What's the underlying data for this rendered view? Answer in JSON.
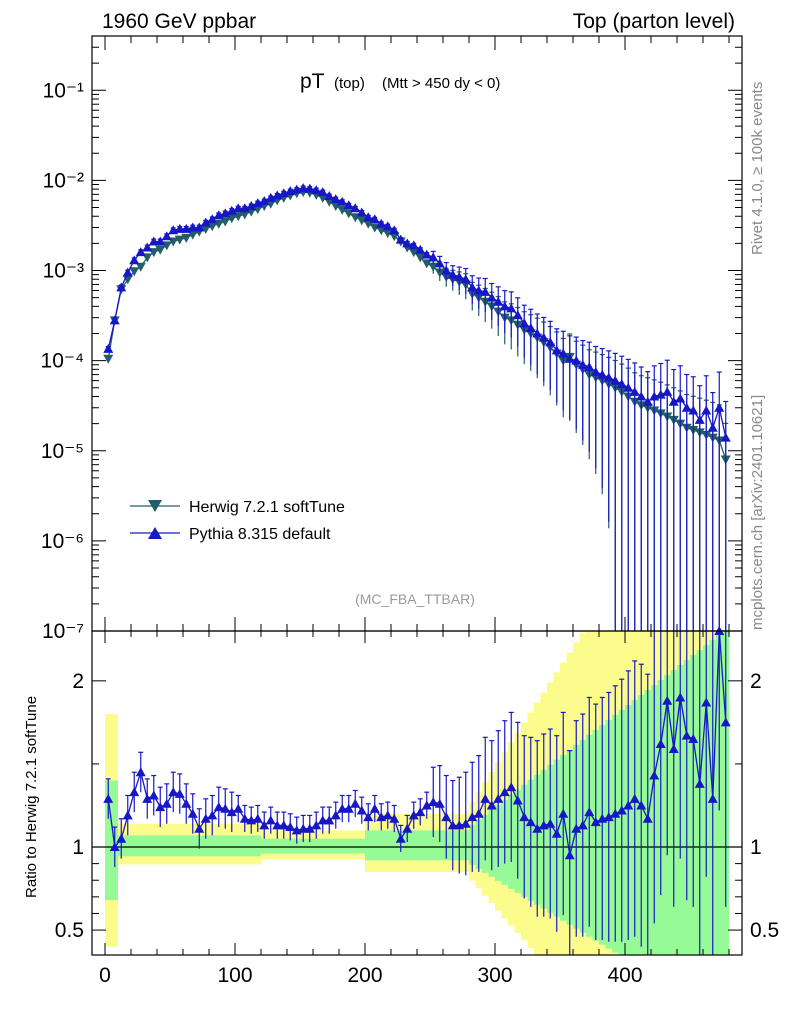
{
  "header": {
    "left": "1960 GeV ppbar",
    "right": "Top (parton level)"
  },
  "side": {
    "rivet": "Rivet 4.1.0, ≥ 100k events",
    "mcplots": "mcplots.cern.ch [arXiv:2401.10621]"
  },
  "chart_data": {
    "type": "line",
    "title_main": "pT",
    "title_sub": "(top)",
    "title_cut": "(Mtt > 450 dy < 0)",
    "analysis": "(MC_FBA_TTBAR)",
    "xlabel": "",
    "ylabel_ratio": "Ratio to Herwig 7.2.1 softTune",
    "xlim": [
      -10,
      490
    ],
    "ylim": [
      1e-07,
      0.4
    ],
    "ylim_ratio": [
      0.35,
      2.3
    ],
    "x_ticks": [
      "0",
      "100",
      "200",
      "300",
      "400"
    ],
    "y_ticks": [
      "10⁻⁷",
      "10⁻⁶",
      "10⁻⁵",
      "10⁻⁴",
      "10⁻³",
      "10⁻²",
      "10⁻¹"
    ],
    "ratio_ticks": [
      "0.5",
      "1",
      "2"
    ],
    "legend": [
      "Herwig 7.2.1 softTune",
      "Pythia 8.315 default"
    ],
    "x": [
      2.5,
      7.5,
      12.5,
      17.5,
      22.5,
      27.5,
      32.5,
      37.5,
      42.5,
      47.5,
      52.5,
      57.5,
      62.5,
      67.5,
      72.5,
      77.5,
      82.5,
      87.5,
      92.5,
      97.5,
      102.5,
      107.5,
      112.5,
      117.5,
      122.5,
      127.5,
      132.5,
      137.5,
      142.5,
      147.5,
      152.5,
      157.5,
      162.5,
      167.5,
      172.5,
      177.5,
      182.5,
      187.5,
      192.5,
      197.5,
      202.5,
      207.5,
      212.5,
      217.5,
      222.5,
      227.5,
      232.5,
      237.5,
      242.5,
      247.5,
      252.5,
      257.5,
      262.5,
      267.5,
      272.5,
      277.5,
      282.5,
      287.5,
      292.5,
      297.5,
      302.5,
      307.5,
      312.5,
      317.5,
      322.5,
      327.5,
      332.5,
      337.5,
      342.5,
      347.5,
      352.5,
      357.5,
      362.5,
      367.5,
      372.5,
      377.5,
      382.5,
      387.5,
      392.5,
      397.5,
      402.5,
      407.5,
      412.5,
      417.5,
      422.5,
      427.5,
      432.5,
      437.5,
      442.5,
      447.5,
      452.5,
      457.5,
      462.5,
      467.5,
      472.5,
      477.5
    ],
    "series": [
      {
        "name": "Herwig 7.2.1 softTune",
        "color": "#225e6a",
        "marker": "triangle-down",
        "values": [
          0.000105,
          0.00028,
          0.00062,
          0.0008,
          0.00098,
          0.0011,
          0.0014,
          0.0016,
          0.0017,
          0.0019,
          0.0021,
          0.0022,
          0.0023,
          0.0025,
          0.0027,
          0.0029,
          0.0031,
          0.0033,
          0.0035,
          0.0038,
          0.004,
          0.0042,
          0.0045,
          0.0048,
          0.0052,
          0.0055,
          0.006,
          0.0064,
          0.0068,
          0.0072,
          0.0074,
          0.0073,
          0.0069,
          0.0064,
          0.0058,
          0.0052,
          0.0047,
          0.0043,
          0.0039,
          0.0036,
          0.0033,
          0.003,
          0.0028,
          0.0026,
          0.0024,
          0.0021,
          0.0018,
          0.0016,
          0.0014,
          0.0012,
          0.0011,
          0.00095,
          0.00085,
          0.0008,
          0.00075,
          0.0007,
          0.00055,
          0.0005,
          0.00045,
          0.0004,
          0.00035,
          0.0003,
          0.00028,
          0.00025,
          0.00022,
          0.0002,
          0.00018,
          0.00016,
          0.00014,
          0.00012,
          0.0001,
          0.00011,
          9e-05,
          8e-05,
          7e-05,
          6.5e-05,
          6e-05,
          5.5e-05,
          5e-05,
          4.5e-05,
          4e-05,
          3.5e-05,
          3.2e-05,
          3e-05,
          2.8e-05,
          2.6e-05,
          2.4e-05,
          2.2e-05,
          2e-05,
          1.8e-05,
          1.7e-05,
          1.6e-05,
          1.5e-05,
          1.4e-05,
          1.3e-05,
          8e-06
        ]
      },
      {
        "name": "Pythia 8.315 default",
        "color": "#1717c8",
        "marker": "triangle-up",
        "values": [
          0.000135,
          0.00028,
          0.00065,
          0.00095,
          0.0013,
          0.0016,
          0.0018,
          0.0021,
          0.0021,
          0.0024,
          0.0028,
          0.0029,
          0.0029,
          0.003,
          0.003,
          0.0034,
          0.0037,
          0.0041,
          0.0043,
          0.0046,
          0.0049,
          0.0049,
          0.0052,
          0.0056,
          0.0059,
          0.0064,
          0.0068,
          0.0072,
          0.0076,
          0.0079,
          0.0082,
          0.0081,
          0.0078,
          0.0074,
          0.0067,
          0.0062,
          0.0058,
          0.0053,
          0.0049,
          0.0044,
          0.0039,
          0.0037,
          0.0033,
          0.0031,
          0.0028,
          0.0022,
          0.002,
          0.0019,
          0.0017,
          0.0015,
          0.0014,
          0.0012,
          0.001,
          0.0009,
          0.00085,
          0.0008,
          0.00065,
          0.0006,
          0.00058,
          0.0005,
          0.00045,
          0.0004,
          0.00038,
          0.00032,
          0.00026,
          0.00023,
          0.0002,
          0.00018,
          0.00016,
          0.00013,
          0.00012,
          0.000105,
          0.0001,
          9e-05,
          8.5e-05,
          7.5e-05,
          7e-05,
          6.5e-05,
          6e-05,
          5.5e-05,
          5e-05,
          4.5e-05,
          4e-05,
          3.5e-05,
          4e-05,
          4.2e-05,
          4.5e-05,
          3.5e-05,
          3.8e-05,
          3e-05,
          2.8e-05,
          2.2e-05,
          2.8e-05,
          1.8e-05,
          3e-05,
          1.4e-05
        ]
      }
    ],
    "ratio": [
      1.29,
      1,
      1.05,
      1.19,
      1.33,
      1.45,
      1.29,
      1.31,
      1.24,
      1.26,
      1.33,
      1.32,
      1.26,
      1.2,
      1.11,
      1.17,
      1.19,
      1.24,
      1.23,
      1.21,
      1.23,
      1.17,
      1.16,
      1.17,
      1.13,
      1.16,
      1.13,
      1.13,
      1.12,
      1.1,
      1.11,
      1.11,
      1.13,
      1.16,
      1.16,
      1.19,
      1.23,
      1.23,
      1.26,
      1.22,
      1.18,
      1.23,
      1.18,
      1.19,
      1.17,
      1.05,
      1.11,
      1.19,
      1.21,
      1.25,
      1.27,
      1.26,
      1.18,
      1.13,
      1.13,
      1.14,
      1.18,
      1.2,
      1.29,
      1.25,
      1.29,
      1.33,
      1.36,
      1.28,
      1.18,
      1.15,
      1.11,
      1.13,
      1.14,
      1.08,
      1.2,
      0.95,
      1.11,
      1.13,
      1.21,
      1.15,
      1.17,
      1.18,
      1.2,
      1.22,
      1.25,
      1.29,
      1.25,
      1.17,
      1.43,
      1.62,
      1.88,
      1.59,
      1.9,
      1.67,
      1.65,
      1.38,
      1.87,
      1.29,
      2.31,
      1.75
    ]
  }
}
